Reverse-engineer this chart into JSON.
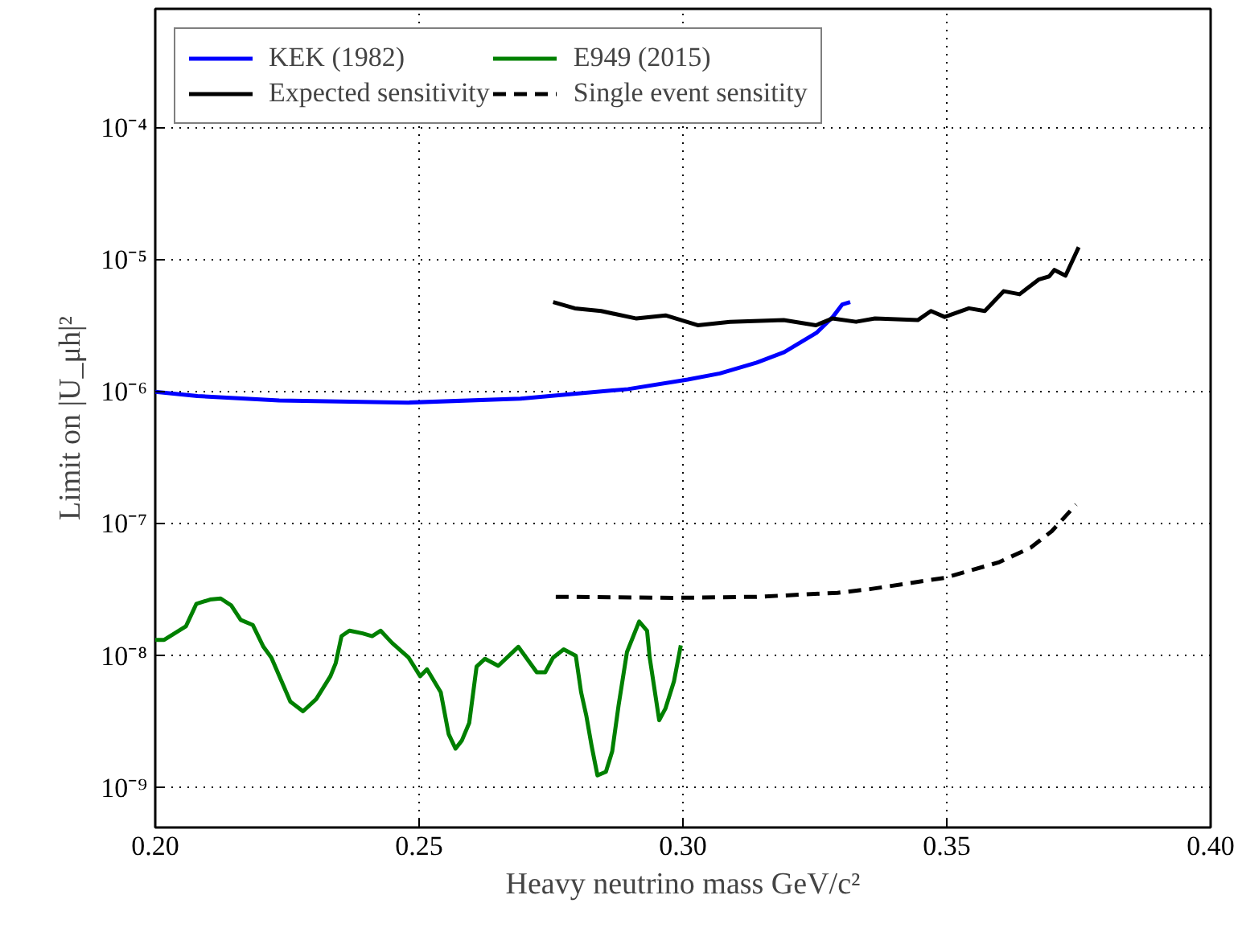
{
  "chart_data": {
    "type": "line",
    "xlabel": "Heavy neutrino mass GeV/c²",
    "ylabel": "Limit on |U_μh|²",
    "log": "y",
    "xlim": [
      0.2,
      0.4
    ],
    "ylim": [
      5e-10,
      0.0008
    ],
    "xticks": [
      {
        "value": 0.2,
        "label": "0.20"
      },
      {
        "value": 0.25,
        "label": "0.25"
      },
      {
        "value": 0.3,
        "label": "0.30"
      },
      {
        "value": 0.35,
        "label": "0.35"
      },
      {
        "value": 0.4,
        "label": "0.40"
      }
    ],
    "yticks": [
      {
        "value": 1e-09,
        "label": "10⁻⁹"
      },
      {
        "value": 1e-08,
        "label": "10⁻⁸"
      },
      {
        "value": 1e-07,
        "label": "10⁻⁷"
      },
      {
        "value": 1e-06,
        "label": "10⁻⁶"
      },
      {
        "value": 1e-05,
        "label": "10⁻⁵"
      },
      {
        "value": 0.0001,
        "label": "10⁻⁴"
      }
    ],
    "grid": true,
    "legend": "top left",
    "series": [
      {
        "name": "KEK (1982)",
        "color": "#0000ff",
        "line_style": "solid",
        "x": [
          0.2,
          0.208,
          0.2235,
          0.248,
          0.2692,
          0.2896,
          0.3009,
          0.307,
          0.314,
          0.3192,
          0.3253,
          0.3284,
          0.3302,
          0.3317
        ],
        "values": [
          1e-06,
          9.3e-07,
          8.6e-07,
          8.3e-07,
          8.9e-07,
          1.05e-06,
          1.24e-06,
          1.38e-06,
          1.67e-06,
          2e-06,
          2.8e-06,
          3.7e-06,
          4.6e-06,
          4.8e-06
        ]
      },
      {
        "name": "E949 (2015)",
        "color": "#008000",
        "line_style": "solid",
        "x": [
          0.2,
          0.2017,
          0.2058,
          0.2078,
          0.2104,
          0.2124,
          0.2144,
          0.2162,
          0.2185,
          0.2205,
          0.222,
          0.2256,
          0.228,
          0.2305,
          0.2332,
          0.2342,
          0.2353,
          0.2368,
          0.2393,
          0.2411,
          0.2427,
          0.2449,
          0.248,
          0.2502,
          0.2515,
          0.2541,
          0.2556,
          0.2569,
          0.2581,
          0.2595,
          0.2609,
          0.2625,
          0.265,
          0.2688,
          0.2723,
          0.2739,
          0.2754,
          0.2774,
          0.2797,
          0.2807,
          0.2817,
          0.2827,
          0.2838,
          0.2854,
          0.2866,
          0.2878,
          0.2894,
          0.2917,
          0.2932,
          0.2937,
          0.2955,
          0.2967,
          0.2983,
          0.2996
        ],
        "values": [
          1.32e-08,
          1.32e-08,
          1.67e-08,
          2.48e-08,
          2.67e-08,
          2.72e-08,
          2.41e-08,
          1.87e-08,
          1.71e-08,
          1.17e-08,
          9.7e-09,
          4.5e-09,
          3.8e-09,
          4.7e-09,
          7e-09,
          8.8e-09,
          1.41e-08,
          1.55e-08,
          1.48e-08,
          1.41e-08,
          1.55e-08,
          1.25e-08,
          9.7e-09,
          7e-09,
          7.9e-09,
          5.3e-09,
          2.55e-09,
          1.98e-09,
          2.28e-09,
          3.1e-09,
          8.3e-09,
          9.5e-09,
          8.4e-09,
          1.17e-08,
          7.5e-09,
          7.5e-09,
          9.7e-09,
          1.12e-08,
          1e-08,
          5.3e-09,
          3.5e-09,
          2.07e-09,
          1.24e-09,
          1.32e-09,
          1.89e-09,
          4.2e-09,
          1.07e-08,
          1.82e-08,
          1.55e-08,
          9.7e-09,
          3.25e-09,
          4e-09,
          6.4e-09,
          1.2e-08
        ]
      },
      {
        "name": "Expected sensitivity",
        "color": "#000000",
        "line_style": "solid",
        "x": [
          0.2754,
          0.2795,
          0.2845,
          0.2912,
          0.2967,
          0.3028,
          0.3089,
          0.3191,
          0.3252,
          0.3283,
          0.3328,
          0.3364,
          0.3445,
          0.347,
          0.3496,
          0.3542,
          0.3572,
          0.3608,
          0.3638,
          0.3674,
          0.3694,
          0.3704,
          0.3725,
          0.375
        ],
        "values": [
          4.8e-06,
          4.3e-06,
          4.1e-06,
          3.6e-06,
          3.8e-06,
          3.2e-06,
          3.4e-06,
          3.5e-06,
          3.2e-06,
          3.6e-06,
          3.4e-06,
          3.6e-06,
          3.5e-06,
          4.1e-06,
          3.7e-06,
          4.3e-06,
          4.1e-06,
          5.8e-06,
          5.5e-06,
          7.1e-06,
          7.5e-06,
          8.4e-06,
          7.6e-06,
          1.25e-05
        ]
      },
      {
        "name": "Single event sensitity",
        "color": "#000000",
        "line_style": "dashed",
        "x": [
          0.2759,
          0.2988,
          0.314,
          0.3293,
          0.3354,
          0.3496,
          0.3598,
          0.3659,
          0.3699,
          0.3745
        ],
        "values": [
          2.8e-08,
          2.75e-08,
          2.8e-08,
          3e-08,
          3.2e-08,
          3.9e-08,
          5.1e-08,
          6.6e-08,
          8.8e-08,
          1.4e-07
        ]
      }
    ]
  }
}
